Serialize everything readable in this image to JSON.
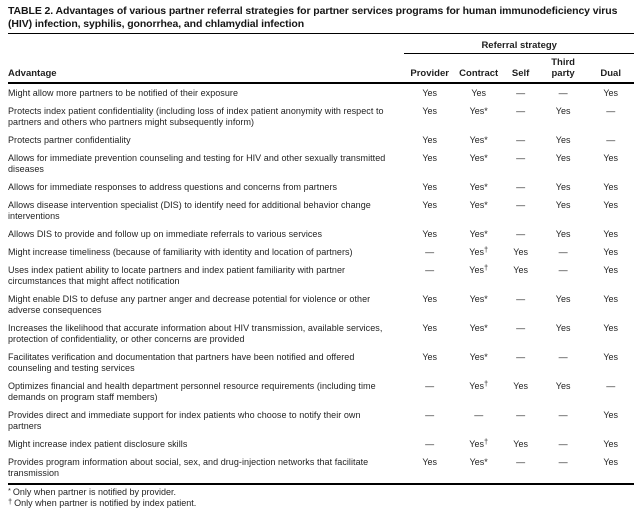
{
  "title": "TABLE 2. Advantages of various partner referral strategies for partner services programs for human immunodeficiency virus (HIV) infection, syphilis, gonorrhea, and chlamydial infection",
  "columns": {
    "group_label": "Referral strategy",
    "row_label": "Advantage",
    "strategies": [
      "Provider",
      "Contract",
      "Self",
      "Third party",
      "Dual"
    ]
  },
  "rows": [
    {
      "advantage": "Might allow more partners to be notified of their exposure",
      "values": [
        "Yes",
        "Yes",
        "—",
        "—",
        "Yes"
      ]
    },
    {
      "advantage": "Protects index patient confidentiality (including loss of index patient anonymity with respect to partners and others who partners might subsequently inform)",
      "values": [
        "Yes",
        "Yes*",
        "—",
        "Yes",
        "—"
      ]
    },
    {
      "advantage": "Protects partner confidentiality",
      "values": [
        "Yes",
        "Yes*",
        "—",
        "Yes",
        "—"
      ]
    },
    {
      "advantage": "Allows for immediate prevention counseling and testing for HIV and other sexually transmitted diseases",
      "values": [
        "Yes",
        "Yes*",
        "—",
        "Yes",
        "Yes"
      ]
    },
    {
      "advantage": "Allows for immediate responses to address questions and concerns from partners",
      "values": [
        "Yes",
        "Yes*",
        "—",
        "Yes",
        "Yes"
      ]
    },
    {
      "advantage": "Allows disease intervention specialist (DIS) to identify need for additional behavior change interventions",
      "values": [
        "Yes",
        "Yes*",
        "—",
        "Yes",
        "Yes"
      ]
    },
    {
      "advantage": "Allows DIS to provide and follow up on immediate referrals to various services",
      "values": [
        "Yes",
        "Yes*",
        "—",
        "Yes",
        "Yes"
      ]
    },
    {
      "advantage": "Might increase timeliness (because of familiarity with identity and location of partners)",
      "values": [
        "—",
        "Yes†",
        "Yes",
        "—",
        "Yes"
      ]
    },
    {
      "advantage": "Uses index patient ability to locate partners and index patient familiarity with partner circumstances that might affect notification",
      "values": [
        "—",
        "Yes†",
        "Yes",
        "—",
        "Yes"
      ]
    },
    {
      "advantage": "Might enable DIS to defuse any partner anger and decrease potential for violence or other adverse consequences",
      "values": [
        "Yes",
        "Yes*",
        "—",
        "Yes",
        "Yes"
      ]
    },
    {
      "advantage": "Increases the likelihood that accurate information about HIV transmission, available services, protection of confidentiality, or other concerns are provided",
      "values": [
        "Yes",
        "Yes*",
        "—",
        "Yes",
        "Yes"
      ]
    },
    {
      "advantage": "Facilitates verification and documentation that partners have been notified and offered counseling and testing services",
      "values": [
        "Yes",
        "Yes*",
        "—",
        "—",
        "Yes"
      ]
    },
    {
      "advantage": "Optimizes financial and health department personnel resource requirements (including time demands on program staff members)",
      "values": [
        "—",
        "Yes†",
        "Yes",
        "Yes",
        "—"
      ]
    },
    {
      "advantage": "Provides direct and immediate support for index patients who choose to notify their own partners",
      "values": [
        "—",
        "—",
        "—",
        "—",
        "Yes"
      ]
    },
    {
      "advantage": "Might increase index patient disclosure skills",
      "values": [
        "—",
        "Yes†",
        "Yes",
        "—",
        "Yes"
      ]
    },
    {
      "advantage": "Provides program information about social, sex, and drug-injection networks that facilitate transmission",
      "values": [
        "Yes",
        "Yes*",
        "—",
        "—",
        "Yes"
      ]
    }
  ],
  "footnotes": [
    {
      "marker": "*",
      "text": "Only when partner is notified by provider."
    },
    {
      "marker": "†",
      "text": "Only when partner is notified by index patient."
    }
  ]
}
